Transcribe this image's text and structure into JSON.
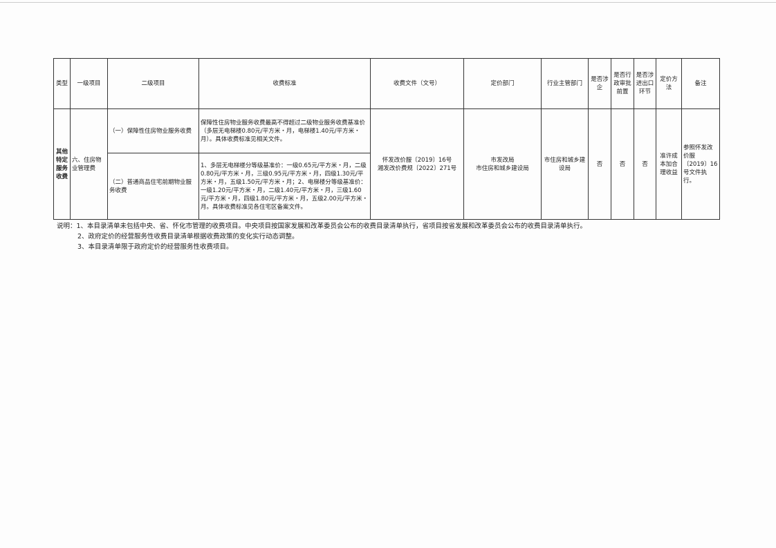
{
  "headers": [
    "类型",
    "一级项目",
    "二级项目",
    "收费标准",
    "收费文件（文号）",
    "定价部门",
    "行业主管部门",
    "是否涉企",
    "是否行政审批前置",
    "是否涉进出口环节",
    "定价方法",
    "备注"
  ],
  "row": {
    "type": "其他特定服务收费",
    "level1": "六、住房物业管理费",
    "sub": [
      {
        "level2": "（一）保障性住房物业服务收费",
        "standard": "保障性住房物业服务收费最高不得超过二级物业服务收费基准价（多层无电梯楼0.80元/平方米・月，电梯楼1.40元/平方米・月）。具体收费标准见相关文件。"
      },
      {
        "level2": "（二）普通商品住宅前期物业服务收费",
        "standard": "1、多层无电梯楼分等级基准价：一级0.65元/平方米・月，二级0.80元/平方米・月，三级0.95元/平方米・月，四级1.30元/平方米・月，五级1.50元/平方米・月；2、电梯楼分等级基准价：一级1.20元/平方米・月，二级1.40元/平方米・月，三级1.60元/平方米・月，四级1.80元/平方米・月，五级2.00元/平方米・月。具体收费标准见各住宅区备案文件。"
      }
    ],
    "documents": [
      "怀发改价服〔2019〕16号",
      "湘发改价费规〔2022〕271号"
    ],
    "pricing_dept": [
      "市发改局",
      "市住房和城乡建设局"
    ],
    "industry_dept": "市住房和城乡建设局",
    "involves_enterprise": "否",
    "admin_approval": "否",
    "import_export": "否",
    "pricing_method": "准许成本加合理收益",
    "remarks": "参照怀发改价服〔2019〕16号文件执行。"
  },
  "notes": [
    "说明：1、本目录清单未包括中央、省、怀化市管理的收费项目。中央项目按国家发展和改革委员会公布的收费目录清单执行，省项目按省发展和改革委员会公布的收费目录清单执行。",
    "2、政府定价的经营服务性收费目录清单根据收费政策的变化实行动态调整。",
    "3、本目录清单限于政府定价的经营服务性收费项目。"
  ]
}
